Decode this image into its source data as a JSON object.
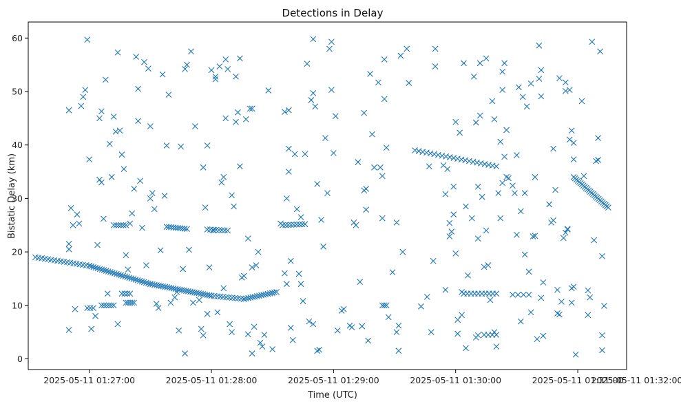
{
  "chart_data": {
    "type": "scatter",
    "title": "Detections in Delay",
    "xlabel": "Time (UTC)",
    "ylabel": "Bistatic Delay (km)",
    "marker": "x",
    "color": "#1f77b4",
    "x_unit": "seconds after 2025-05-11 01:26:30",
    "xlim": [
      0,
      294
    ],
    "ylim": [
      -2,
      63
    ],
    "x_ticks": [
      {
        "value": 30,
        "label": "2025-05-11 01:27:00"
      },
      {
        "value": 90,
        "label": "2025-05-11 01:28:00"
      },
      {
        "value": 150,
        "label": "2025-05-11 01:29:00"
      },
      {
        "value": 210,
        "label": "2025-05-11 01:30:00"
      },
      {
        "value": 270,
        "label": "2025-05-11 01:31:00"
      },
      {
        "value": 330,
        "label": "2025-05-11 01:32:00"
      }
    ],
    "y_ticks": [
      0,
      10,
      20,
      30,
      40,
      50,
      60
    ],
    "grid": false,
    "tracks": [
      {
        "from": [
          3.5,
          19.0
        ],
        "to": [
          30.0,
          17.4
        ],
        "n": 18
      },
      {
        "from": [
          30.0,
          17.4
        ],
        "to": [
          60.0,
          14.0
        ],
        "n": 30
      },
      {
        "from": [
          60.0,
          14.0
        ],
        "to": [
          90.0,
          11.8
        ],
        "n": 30
      },
      {
        "from": [
          90.0,
          11.8
        ],
        "to": [
          106.0,
          11.2
        ],
        "n": 12
      },
      {
        "from": [
          106.0,
          11.2
        ],
        "to": [
          122.0,
          12.5
        ],
        "n": 16
      },
      {
        "from": [
          190.0,
          39.0
        ],
        "to": [
          230.0,
          36.0
        ],
        "n": 22
      },
      {
        "from": [
          268.0,
          34.0
        ],
        "to": [
          285.0,
          28.3
        ],
        "n": 26
      }
    ],
    "clusters": [
      {
        "from": [
          42,
          25.0
        ],
        "to": [
          48,
          25.0
        ],
        "n": 6
      },
      {
        "from": [
          68,
          24.7
        ],
        "to": [
          78,
          24.3
        ],
        "n": 10
      },
      {
        "from": [
          88,
          24.2
        ],
        "to": [
          98,
          24.0
        ],
        "n": 8
      },
      {
        "from": [
          125,
          25.0
        ],
        "to": [
          136,
          25.2
        ],
        "n": 9
      },
      {
        "from": [
          36,
          10.0
        ],
        "to": [
          42,
          10.0
        ],
        "n": 6
      },
      {
        "from": [
          48,
          10.5
        ],
        "to": [
          52,
          10.5
        ],
        "n": 5
      },
      {
        "from": [
          46,
          12.2
        ],
        "to": [
          50,
          12.2
        ],
        "n": 4
      },
      {
        "from": [
          29,
          9.5
        ],
        "to": [
          32,
          9.5
        ],
        "n": 3
      },
      {
        "from": [
          174,
          10.0
        ],
        "to": [
          176,
          10.0
        ],
        "n": 3
      },
      {
        "from": [
          214,
          12.2
        ],
        "to": [
          230,
          12.2
        ],
        "n": 10
      },
      {
        "from": [
          238,
          12.0
        ],
        "to": [
          246,
          12.0
        ],
        "n": 4
      },
      {
        "from": [
          224,
          4.5
        ],
        "to": [
          230,
          4.5
        ],
        "n": 4
      }
    ],
    "scatter": [
      [
        20,
        46.5
      ],
      [
        21,
        28.2
      ],
      [
        22,
        25
      ],
      [
        23,
        9.3
      ],
      [
        24,
        27
      ],
      [
        25,
        25.3
      ],
      [
        26,
        47.3
      ],
      [
        27,
        49
      ],
      [
        28,
        50.3
      ],
      [
        29,
        59.7
      ],
      [
        30,
        37.3
      ],
      [
        31,
        5.6
      ],
      [
        20,
        5.4
      ],
      [
        20,
        21.5
      ],
      [
        20,
        20.5
      ],
      [
        33,
        8
      ],
      [
        34,
        21.3
      ],
      [
        35,
        45
      ],
      [
        35,
        33.5
      ],
      [
        36,
        46.3
      ],
      [
        36,
        33
      ],
      [
        37,
        26.2
      ],
      [
        38,
        52.2
      ],
      [
        39,
        12.2
      ],
      [
        40,
        40.2
      ],
      [
        41,
        34
      ],
      [
        42,
        45.3
      ],
      [
        43,
        42.5
      ],
      [
        44,
        6.5
      ],
      [
        44,
        57.3
      ],
      [
        45,
        42.7
      ],
      [
        46,
        38.2
      ],
      [
        47,
        35.5
      ],
      [
        48,
        19.4
      ],
      [
        49,
        16.7
      ],
      [
        50,
        25.3
      ],
      [
        51,
        27.2
      ],
      [
        52,
        31.8
      ],
      [
        53,
        56.5
      ],
      [
        54,
        50.5
      ],
      [
        54,
        44.5
      ],
      [
        55,
        33.3
      ],
      [
        56,
        24.5
      ],
      [
        57,
        55.5
      ],
      [
        58,
        17.5
      ],
      [
        59,
        54.3
      ],
      [
        60,
        43.5
      ],
      [
        60,
        30
      ],
      [
        61,
        31
      ],
      [
        62,
        28
      ],
      [
        63,
        10.3
      ],
      [
        64,
        9.5
      ],
      [
        65,
        20.3
      ],
      [
        66,
        53.2
      ],
      [
        67,
        30.5
      ],
      [
        68,
        39.9
      ],
      [
        69,
        49.4
      ],
      [
        70,
        10.5
      ],
      [
        72,
        11.5
      ],
      [
        73,
        12.5
      ],
      [
        74,
        5.3
      ],
      [
        75,
        39.7
      ],
      [
        76,
        16.8
      ],
      [
        77,
        54.2
      ],
      [
        77,
        1
      ],
      [
        78,
        55
      ],
      [
        79,
        20.4
      ],
      [
        80,
        57.5
      ],
      [
        81,
        10.5
      ],
      [
        82,
        43.5
      ],
      [
        84,
        11
      ],
      [
        85,
        5.6
      ],
      [
        86,
        4.4
      ],
      [
        86,
        35.8
      ],
      [
        87,
        28.3
      ],
      [
        88,
        8.4
      ],
      [
        88,
        39.9
      ],
      [
        89,
        17.1
      ],
      [
        90,
        54
      ],
      [
        91,
        24
      ],
      [
        92,
        52.3
      ],
      [
        92,
        52.8
      ],
      [
        93,
        8.7
      ],
      [
        94,
        54.7
      ],
      [
        95,
        33
      ],
      [
        96,
        34
      ],
      [
        96,
        13.2
      ],
      [
        97,
        56
      ],
      [
        97,
        45
      ],
      [
        98,
        54.2
      ],
      [
        99,
        6.5
      ],
      [
        100,
        30.6
      ],
      [
        100,
        5
      ],
      [
        101,
        28.5
      ],
      [
        102,
        44.3
      ],
      [
        102,
        52.8
      ],
      [
        103,
        46.1
      ],
      [
        104,
        56.2
      ],
      [
        104,
        36
      ],
      [
        105,
        15.2
      ],
      [
        106,
        15.5
      ],
      [
        107,
        44.8
      ],
      [
        108,
        22.5
      ],
      [
        108,
        4.6
      ],
      [
        109,
        46.8
      ],
      [
        110,
        46.8
      ],
      [
        110,
        17.1
      ],
      [
        110,
        1
      ],
      [
        111,
        6
      ],
      [
        112,
        17.5
      ],
      [
        113,
        20
      ],
      [
        114,
        3
      ],
      [
        115,
        2.3
      ],
      [
        116,
        4.5
      ],
      [
        118,
        50.2
      ],
      [
        120,
        1.8
      ],
      [
        124,
        25.3
      ],
      [
        126,
        16
      ],
      [
        126,
        46.2
      ],
      [
        127,
        14
      ],
      [
        127,
        30
      ],
      [
        128,
        39.3
      ],
      [
        128,
        35
      ],
      [
        128,
        46.5
      ],
      [
        129,
        18.3
      ],
      [
        129,
        5.8
      ],
      [
        130,
        3.5
      ],
      [
        131,
        38.3
      ],
      [
        132,
        28
      ],
      [
        133,
        15.9
      ],
      [
        134,
        14
      ],
      [
        134,
        26.5
      ],
      [
        135,
        10.8
      ],
      [
        136,
        38.3
      ],
      [
        137,
        55.2
      ],
      [
        138,
        7
      ],
      [
        139,
        48.4
      ],
      [
        140,
        59.8
      ],
      [
        140,
        6.5
      ],
      [
        140,
        49.7
      ],
      [
        141,
        47.2
      ],
      [
        142,
        1.5
      ],
      [
        142,
        32.7
      ],
      [
        143,
        1.7
      ],
      [
        144,
        26
      ],
      [
        145,
        21
      ],
      [
        146,
        41.3
      ],
      [
        147,
        31
      ],
      [
        148,
        58
      ],
      [
        149,
        50.3
      ],
      [
        149,
        59.3
      ],
      [
        150,
        38.5
      ],
      [
        151,
        45.4
      ],
      [
        152,
        5.3
      ],
      [
        154,
        9
      ],
      [
        155,
        9.3
      ],
      [
        158,
        6.2
      ],
      [
        159,
        5.9
      ],
      [
        160,
        25.5
      ],
      [
        161,
        25
      ],
      [
        162,
        36.8
      ],
      [
        163,
        14.4
      ],
      [
        164,
        6.1
      ],
      [
        165,
        46
      ],
      [
        165,
        31.5
      ],
      [
        166,
        31.8
      ],
      [
        166,
        27.9
      ],
      [
        167,
        3.4
      ],
      [
        168,
        53.3
      ],
      [
        169,
        42
      ],
      [
        170,
        35.8
      ],
      [
        172,
        51.7
      ],
      [
        173,
        35.8
      ],
      [
        174,
        34.2
      ],
      [
        174,
        26.3
      ],
      [
        175,
        48.6
      ],
      [
        175,
        56
      ],
      [
        176,
        39.5
      ],
      [
        177,
        7.8
      ],
      [
        179,
        16.2
      ],
      [
        181,
        25.5
      ],
      [
        181,
        5
      ],
      [
        182,
        6.2
      ],
      [
        182,
        1.5
      ],
      [
        183,
        56.7
      ],
      [
        184,
        20
      ],
      [
        186,
        58
      ],
      [
        187,
        51.6
      ],
      [
        193,
        9.8
      ],
      [
        196,
        11.6
      ],
      [
        197,
        36
      ],
      [
        198,
        5
      ],
      [
        199,
        18.3
      ],
      [
        200,
        54.7
      ],
      [
        200,
        58
      ],
      [
        204,
        36.2
      ],
      [
        205,
        12.9
      ],
      [
        205,
        30.8
      ],
      [
        206,
        35.5
      ],
      [
        207,
        25.4
      ],
      [
        207,
        22.9
      ],
      [
        208,
        23.8
      ],
      [
        209,
        27
      ],
      [
        209,
        32.2
      ],
      [
        210,
        19.7
      ],
      [
        210,
        44.3
      ],
      [
        211,
        7.3
      ],
      [
        211,
        4.7
      ],
      [
        212,
        42.3
      ],
      [
        213,
        8.2
      ],
      [
        213,
        12.5
      ],
      [
        214,
        55.3
      ],
      [
        215,
        28.5
      ],
      [
        215,
        2
      ],
      [
        216,
        15.6
      ],
      [
        218,
        26.3
      ],
      [
        219,
        52.8
      ],
      [
        220,
        4
      ],
      [
        220,
        44.2
      ],
      [
        221,
        4.4
      ],
      [
        221,
        22.5
      ],
      [
        221,
        32.2
      ],
      [
        222,
        55.3
      ],
      [
        222,
        45.5
      ],
      [
        223,
        30.3
      ],
      [
        224,
        17.2
      ],
      [
        225,
        56.2
      ],
      [
        225,
        24
      ],
      [
        226,
        17.5
      ],
      [
        227,
        11
      ],
      [
        228,
        48.2
      ],
      [
        229,
        5
      ],
      [
        229,
        44.8
      ],
      [
        230,
        2.3
      ],
      [
        231,
        31
      ],
      [
        232,
        26.3
      ],
      [
        232,
        40.6
      ],
      [
        233,
        53.7
      ],
      [
        233,
        50.3
      ],
      [
        233,
        32.9
      ],
      [
        234,
        55.3
      ],
      [
        234,
        37.8
      ],
      [
        235,
        42.8
      ],
      [
        235,
        34
      ],
      [
        236,
        33.8
      ],
      [
        238,
        32.4
      ],
      [
        239,
        31
      ],
      [
        240,
        38.1
      ],
      [
        240,
        23.2
      ],
      [
        241,
        50.8
      ],
      [
        242,
        7
      ],
      [
        242,
        27.6
      ],
      [
        243,
        49
      ],
      [
        244,
        31
      ],
      [
        244,
        19.5
      ],
      [
        245,
        47.2
      ],
      [
        246,
        16.3
      ],
      [
        247,
        51.5
      ],
      [
        247,
        8.7
      ],
      [
        248,
        22.9
      ],
      [
        249,
        34
      ],
      [
        249,
        23
      ],
      [
        250,
        3.7
      ],
      [
        251,
        52.4
      ],
      [
        251,
        58.6
      ],
      [
        252,
        54
      ],
      [
        252,
        49.1
      ],
      [
        252,
        11.4
      ],
      [
        253,
        14.3
      ],
      [
        253,
        4.3
      ],
      [
        256,
        28.9
      ],
      [
        257,
        25.5
      ],
      [
        258,
        39.3
      ],
      [
        258,
        25.9
      ],
      [
        259,
        31.6
      ],
      [
        260,
        12.9
      ],
      [
        260,
        8.5
      ],
      [
        261,
        52.5
      ],
      [
        261,
        8.3
      ],
      [
        262,
        10.7
      ],
      [
        263,
        22.6
      ],
      [
        264,
        23.6
      ],
      [
        264,
        51.7
      ],
      [
        264,
        50.1
      ],
      [
        265,
        24.3
      ],
      [
        265,
        24.2
      ],
      [
        266,
        50.3
      ],
      [
        266,
        41
      ],
      [
        267,
        13.2
      ],
      [
        267,
        10.5
      ],
      [
        267,
        42.7
      ],
      [
        268,
        37.3
      ],
      [
        268,
        40.4
      ],
      [
        268,
        13.5
      ],
      [
        269,
        0.8
      ],
      [
        272,
        48.2
      ],
      [
        273,
        34.2
      ],
      [
        275,
        12.8
      ],
      [
        275,
        8.2
      ],
      [
        276,
        11.5
      ],
      [
        277,
        59.3
      ],
      [
        278,
        22.2
      ],
      [
        279,
        37
      ],
      [
        280,
        37.2
      ],
      [
        280,
        41.3
      ],
      [
        281,
        57.5
      ],
      [
        282,
        19.2
      ],
      [
        282,
        4.4
      ],
      [
        282,
        1.6
      ],
      [
        283,
        9.9
      ]
    ]
  }
}
